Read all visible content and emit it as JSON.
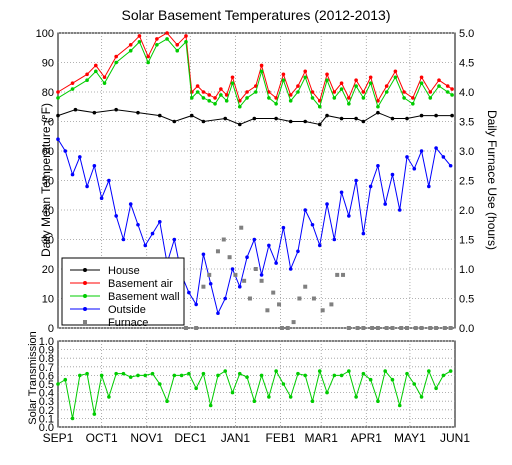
{
  "chart_data": [
    {
      "type": "line",
      "title": "Solar Basement Temperatures (2012-2013)",
      "ylabel": "Daily Mean Temperature (°F)",
      "y2label": "Daily Furnace Use (hours)",
      "ylim": [
        0,
        100
      ],
      "y2lim": [
        0.0,
        5.0
      ],
      "yticks": [
        "0",
        "10",
        "20",
        "30",
        "40",
        "50",
        "60",
        "70",
        "80",
        "90",
        "100"
      ],
      "y2ticks": [
        "0.0",
        "0.5",
        "1.0",
        "1.5",
        "2.0",
        "2.5",
        "3.0",
        "3.5",
        "4.0",
        "4.5",
        "5.0"
      ],
      "grid": true,
      "legend_position": "bottom-left",
      "series": [
        {
          "name": "House",
          "color": "#000000",
          "axis": "left",
          "x_days": [
            0,
            12,
            25,
            40,
            55,
            70,
            80,
            92,
            100,
            115,
            125,
            135,
            150,
            160,
            170,
            180,
            185,
            195,
            205,
            210,
            220,
            230,
            240,
            250,
            260,
            271
          ],
          "values": [
            72,
            74,
            73,
            74,
            73,
            72,
            70,
            72,
            70,
            71,
            69,
            71,
            71,
            70,
            70,
            69,
            72,
            71,
            71,
            70,
            73,
            71,
            71,
            72,
            72,
            72
          ]
        },
        {
          "name": "Basement air",
          "color": "#ff0000",
          "axis": "left",
          "x_days": [
            0,
            10,
            20,
            26,
            32,
            40,
            50,
            56,
            62,
            68,
            75,
            82,
            88,
            92,
            96,
            100,
            104,
            108,
            112,
            116,
            120,
            125,
            130,
            136,
            140,
            145,
            150,
            155,
            160,
            165,
            170,
            175,
            180,
            185,
            190,
            195,
            200,
            205,
            210,
            215,
            220,
            226,
            232,
            238,
            244,
            250,
            256,
            262,
            268,
            271
          ],
          "values": [
            80,
            83,
            86,
            89,
            85,
            92,
            96,
            99,
            92,
            98,
            100,
            96,
            99,
            80,
            82,
            80,
            79,
            78,
            81,
            79,
            85,
            77,
            80,
            82,
            89,
            80,
            78,
            86,
            79,
            82,
            87,
            80,
            77,
            86,
            80,
            83,
            78,
            84,
            80,
            85,
            77,
            82,
            87,
            80,
            78,
            85,
            80,
            84,
            82,
            81
          ]
        },
        {
          "name": "Basement wall",
          "color": "#00cc00",
          "axis": "left",
          "x_days": [
            0,
            10,
            20,
            26,
            32,
            40,
            50,
            56,
            62,
            68,
            75,
            82,
            88,
            92,
            96,
            100,
            104,
            108,
            112,
            116,
            120,
            125,
            130,
            136,
            140,
            145,
            150,
            155,
            160,
            165,
            170,
            175,
            180,
            185,
            190,
            195,
            200,
            205,
            210,
            215,
            220,
            226,
            232,
            238,
            244,
            250,
            256,
            262,
            268,
            271
          ],
          "values": [
            78,
            81,
            84,
            87,
            83,
            90,
            94,
            97,
            90,
            96,
            98,
            94,
            97,
            78,
            80,
            78,
            77,
            76,
            79,
            77,
            83,
            75,
            78,
            80,
            87,
            78,
            76,
            84,
            77,
            80,
            85,
            78,
            75,
            84,
            78,
            81,
            76,
            82,
            78,
            83,
            75,
            80,
            85,
            78,
            76,
            83,
            78,
            82,
            80,
            79
          ]
        },
        {
          "name": "Outside",
          "color": "#0000ff",
          "axis": "left",
          "x_days": [
            0,
            5,
            10,
            15,
            20,
            25,
            30,
            35,
            40,
            45,
            50,
            55,
            60,
            65,
            70,
            75,
            80,
            85,
            90,
            95,
            100,
            105,
            110,
            115,
            120,
            125,
            130,
            135,
            140,
            145,
            150,
            155,
            160,
            165,
            170,
            175,
            180,
            185,
            190,
            195,
            200,
            205,
            210,
            215,
            220,
            225,
            230,
            235,
            240,
            245,
            250,
            255,
            260,
            265,
            270
          ],
          "values": [
            64,
            60,
            52,
            58,
            48,
            55,
            44,
            50,
            38,
            30,
            42,
            35,
            28,
            32,
            36,
            22,
            30,
            18,
            12,
            8,
            25,
            15,
            5,
            10,
            20,
            14,
            24,
            30,
            18,
            28,
            22,
            34,
            20,
            26,
            40,
            35,
            28,
            42,
            30,
            46,
            38,
            50,
            32,
            48,
            55,
            42,
            52,
            40,
            58,
            54,
            60,
            48,
            61,
            58,
            55
          ]
        },
        {
          "name": "Furnace",
          "color": "#808080",
          "axis": "right",
          "x_days": [
            88,
            95,
            100,
            104,
            110,
            114,
            118,
            122,
            126,
            128,
            132,
            136,
            140,
            144,
            148,
            152,
            154,
            158,
            162,
            166,
            170,
            176,
            182,
            188,
            192,
            196,
            200,
            206,
            210,
            216,
            220,
            226,
            230,
            236,
            240,
            246,
            250,
            256,
            260,
            266,
            270
          ],
          "values": [
            0.0,
            0.0,
            0.7,
            0.9,
            1.3,
            1.5,
            1.2,
            0.9,
            1.7,
            0.8,
            0.5,
            1.0,
            0.8,
            0.3,
            0.6,
            0.4,
            0.0,
            0.0,
            0.1,
            0.5,
            0.7,
            0.5,
            0.3,
            0.4,
            0.9,
            0.9,
            0.0,
            0.0,
            0.0,
            0.0,
            0.0,
            0.0,
            0.0,
            0.0,
            0.0,
            0.0,
            0.0,
            0.0,
            0.0,
            0.0,
            0.0
          ]
        }
      ]
    },
    {
      "type": "line",
      "ylabel": "Solar Transmission",
      "ylim": [
        0.0,
        1.0
      ],
      "yticks": [
        "0.0",
        "0.1",
        "0.2",
        "0.3",
        "0.4",
        "0.5",
        "0.6",
        "0.7",
        "0.8",
        "0.9",
        "1.0"
      ],
      "grid": true,
      "series": [
        {
          "name": "Solar Transmission",
          "color": "#00cc00",
          "x_days": [
            0,
            5,
            10,
            15,
            20,
            25,
            30,
            35,
            40,
            45,
            50,
            55,
            60,
            65,
            70,
            75,
            80,
            85,
            90,
            95,
            100,
            105,
            110,
            115,
            120,
            125,
            130,
            135,
            140,
            145,
            150,
            155,
            160,
            165,
            170,
            175,
            180,
            185,
            190,
            195,
            200,
            205,
            210,
            215,
            220,
            225,
            230,
            235,
            240,
            245,
            250,
            255,
            260,
            265,
            270
          ],
          "values": [
            0.5,
            0.55,
            0.1,
            0.6,
            0.62,
            0.15,
            0.6,
            0.35,
            0.62,
            0.62,
            0.58,
            0.6,
            0.6,
            0.62,
            0.5,
            0.3,
            0.6,
            0.6,
            0.62,
            0.45,
            0.62,
            0.25,
            0.6,
            0.65,
            0.4,
            0.62,
            0.58,
            0.3,
            0.6,
            0.35,
            0.65,
            0.5,
            0.35,
            0.62,
            0.6,
            0.3,
            0.65,
            0.4,
            0.6,
            0.6,
            0.65,
            0.35,
            0.62,
            0.55,
            0.3,
            0.65,
            0.55,
            0.25,
            0.62,
            0.5,
            0.35,
            0.65,
            0.45,
            0.6,
            0.65
          ]
        }
      ]
    }
  ],
  "x_axis": {
    "tick_labels": [
      "SEP1",
      "OCT1",
      "NOV1",
      "DEC1",
      "JAN1",
      "FEB1",
      "MAR1",
      "APR1",
      "MAY1",
      "JUN1"
    ],
    "tick_days": [
      0,
      30,
      61,
      91,
      122,
      153,
      181,
      212,
      242,
      273
    ],
    "range_days": [
      0,
      273
    ]
  }
}
